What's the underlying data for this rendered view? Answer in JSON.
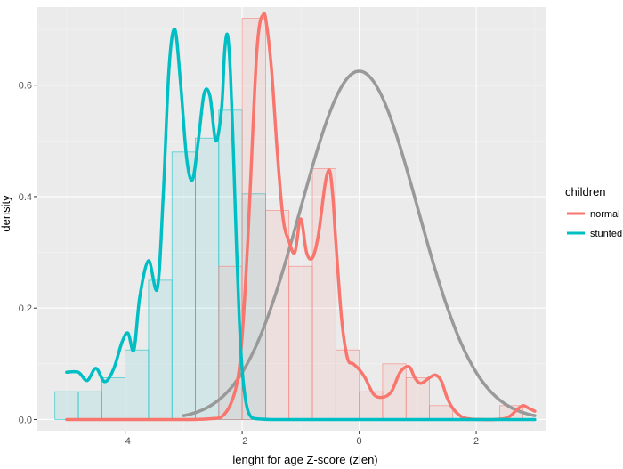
{
  "chart_data": {
    "type": "area",
    "xlabel": "lenght for age Z-score (zlen)",
    "ylabel": "density",
    "xlim": [
      -5.5,
      3.2
    ],
    "ylim": [
      -0.02,
      0.74
    ],
    "x_ticks": [
      -4,
      -2,
      0,
      2
    ],
    "x_tick_labels": [
      "−4",
      "−2",
      "0",
      "2"
    ],
    "y_ticks": [
      0.0,
      0.2,
      0.4,
      0.6
    ],
    "y_tick_labels": [
      "0.0",
      "0.2",
      "0.4",
      "0.6"
    ],
    "grid": true,
    "legend": {
      "title": "children",
      "position": "right",
      "entries": [
        {
          "label": "normal",
          "color": "#F8766D"
        },
        {
          "label": "stunted",
          "color": "#00BFC4"
        }
      ]
    },
    "colors": {
      "panel": "#EBEBEB",
      "grid_major": "#FFFFFF",
      "grid_minor": "#F4F4F4",
      "normal": "#F8766D",
      "stunted": "#00BFC4",
      "reference": "#999999"
    },
    "histograms": [
      {
        "name": "stunted",
        "bin_width": 0.4,
        "bins": [
          {
            "x0": -5.2,
            "x1": -4.8,
            "y": 0.05
          },
          {
            "x0": -4.8,
            "x1": -4.4,
            "y": 0.05
          },
          {
            "x0": -4.4,
            "x1": -4.0,
            "y": 0.075
          },
          {
            "x0": -4.0,
            "x1": -3.6,
            "y": 0.125
          },
          {
            "x0": -3.6,
            "x1": -3.2,
            "y": 0.25
          },
          {
            "x0": -3.2,
            "x1": -2.8,
            "y": 0.48
          },
          {
            "x0": -2.8,
            "x1": -2.4,
            "y": 0.505
          },
          {
            "x0": -2.4,
            "x1": -2.0,
            "y": 0.555
          },
          {
            "x0": -2.0,
            "x1": -1.6,
            "y": 0.405
          }
        ]
      },
      {
        "name": "normal",
        "bin_width": 0.4,
        "bins": [
          {
            "x0": -2.4,
            "x1": -2.0,
            "y": 0.275
          },
          {
            "x0": -2.0,
            "x1": -1.6,
            "y": 0.72
          },
          {
            "x0": -1.6,
            "x1": -1.2,
            "y": 0.375
          },
          {
            "x0": -1.2,
            "x1": -0.8,
            "y": 0.275
          },
          {
            "x0": -0.8,
            "x1": -0.4,
            "y": 0.45
          },
          {
            "x0": -0.4,
            "x1": 0.0,
            "y": 0.125
          },
          {
            "x0": 0.0,
            "x1": 0.4,
            "y": 0.05
          },
          {
            "x0": 0.4,
            "x1": 0.8,
            "y": 0.1
          },
          {
            "x0": 0.8,
            "x1": 1.2,
            "y": 0.075
          },
          {
            "x0": 1.2,
            "x1": 1.6,
            "y": 0.025
          },
          {
            "x0": 2.4,
            "x1": 2.8,
            "y": 0.025
          }
        ]
      }
    ],
    "series": [
      {
        "name": "stunted",
        "x": [
          -5.0,
          -4.8,
          -4.65,
          -4.5,
          -4.35,
          -4.2,
          -4.05,
          -3.95,
          -3.85,
          -3.75,
          -3.6,
          -3.45,
          -3.35,
          -3.25,
          -3.15,
          -3.05,
          -2.95,
          -2.85,
          -2.75,
          -2.65,
          -2.55,
          -2.45,
          -2.35,
          -2.3,
          -2.25,
          -2.2,
          -2.15,
          -2.1,
          -2.05,
          -2.0,
          -1.95,
          -1.9,
          -1.85,
          -1.8,
          -1.7,
          -1.5,
          -1.0,
          0.0,
          1.0,
          2.0,
          3.0
        ],
        "y": [
          0.085,
          0.085,
          0.07,
          0.092,
          0.068,
          0.09,
          0.14,
          0.155,
          0.125,
          0.22,
          0.285,
          0.235,
          0.4,
          0.63,
          0.7,
          0.6,
          0.47,
          0.43,
          0.5,
          0.585,
          0.58,
          0.5,
          0.56,
          0.66,
          0.69,
          0.62,
          0.48,
          0.32,
          0.18,
          0.09,
          0.04,
          0.015,
          0.005,
          0.002,
          0.001,
          0.0,
          0.0,
          0.0,
          0.0,
          0.0,
          0.0
        ]
      },
      {
        "name": "normal",
        "x": [
          -5.0,
          -3.5,
          -2.6,
          -2.3,
          -2.1,
          -2.0,
          -1.9,
          -1.8,
          -1.75,
          -1.7,
          -1.65,
          -1.6,
          -1.5,
          -1.4,
          -1.3,
          -1.2,
          -1.1,
          -1.0,
          -0.9,
          -0.8,
          -0.7,
          -0.6,
          -0.55,
          -0.5,
          -0.45,
          -0.4,
          -0.3,
          -0.2,
          -0.1,
          0.0,
          0.1,
          0.25,
          0.4,
          0.55,
          0.7,
          0.85,
          0.95,
          1.05,
          1.2,
          1.3,
          1.4,
          1.5,
          1.6,
          1.75,
          1.9,
          2.1,
          2.3,
          2.5,
          2.6,
          2.7,
          2.8,
          2.9,
          3.0
        ],
        "y": [
          0.0,
          0.0,
          0.001,
          0.01,
          0.06,
          0.15,
          0.33,
          0.56,
          0.66,
          0.71,
          0.725,
          0.72,
          0.63,
          0.48,
          0.36,
          0.32,
          0.3,
          0.36,
          0.3,
          0.29,
          0.33,
          0.41,
          0.44,
          0.445,
          0.4,
          0.32,
          0.18,
          0.11,
          0.1,
          0.09,
          0.075,
          0.045,
          0.04,
          0.05,
          0.085,
          0.095,
          0.075,
          0.065,
          0.075,
          0.08,
          0.07,
          0.04,
          0.02,
          0.005,
          0.001,
          0.0,
          0.0,
          0.002,
          0.008,
          0.018,
          0.025,
          0.02,
          0.015
        ]
      },
      {
        "name": "reference",
        "distribution": "normal",
        "mean": 0,
        "sd": 1,
        "x_range": [
          -3.0,
          3.0
        ]
      }
    ]
  }
}
